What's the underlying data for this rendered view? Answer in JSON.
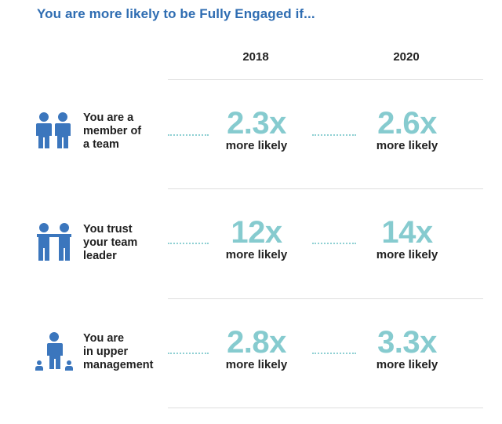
{
  "title": "You are more likely to be Fully Engaged if...",
  "years": [
    "2018",
    "2020"
  ],
  "colors": {
    "title": "#2f6db2",
    "icon": "#3b76bd",
    "value": "#86cbcf",
    "dots": "#8fd0d3",
    "divider": "#dedede",
    "text": "#1f1f1f"
  },
  "rows": [
    {
      "icon": "two-people-icon",
      "label_lines": [
        "You are a",
        "member of",
        "a team"
      ],
      "value_2018": "2.3x",
      "value_2020": "2.6x",
      "suffix": "more likely"
    },
    {
      "icon": "people-holding-hands-icon",
      "label_lines": [
        "You trust",
        "your team",
        "leader"
      ],
      "value_2018": "12x",
      "value_2020": "14x",
      "suffix": "more likely"
    },
    {
      "icon": "leader-with-team-icon",
      "label_lines": [
        "You are",
        "in upper",
        "management"
      ],
      "value_2018": "2.8x",
      "value_2020": "3.3x",
      "suffix": "more likely"
    }
  ]
}
